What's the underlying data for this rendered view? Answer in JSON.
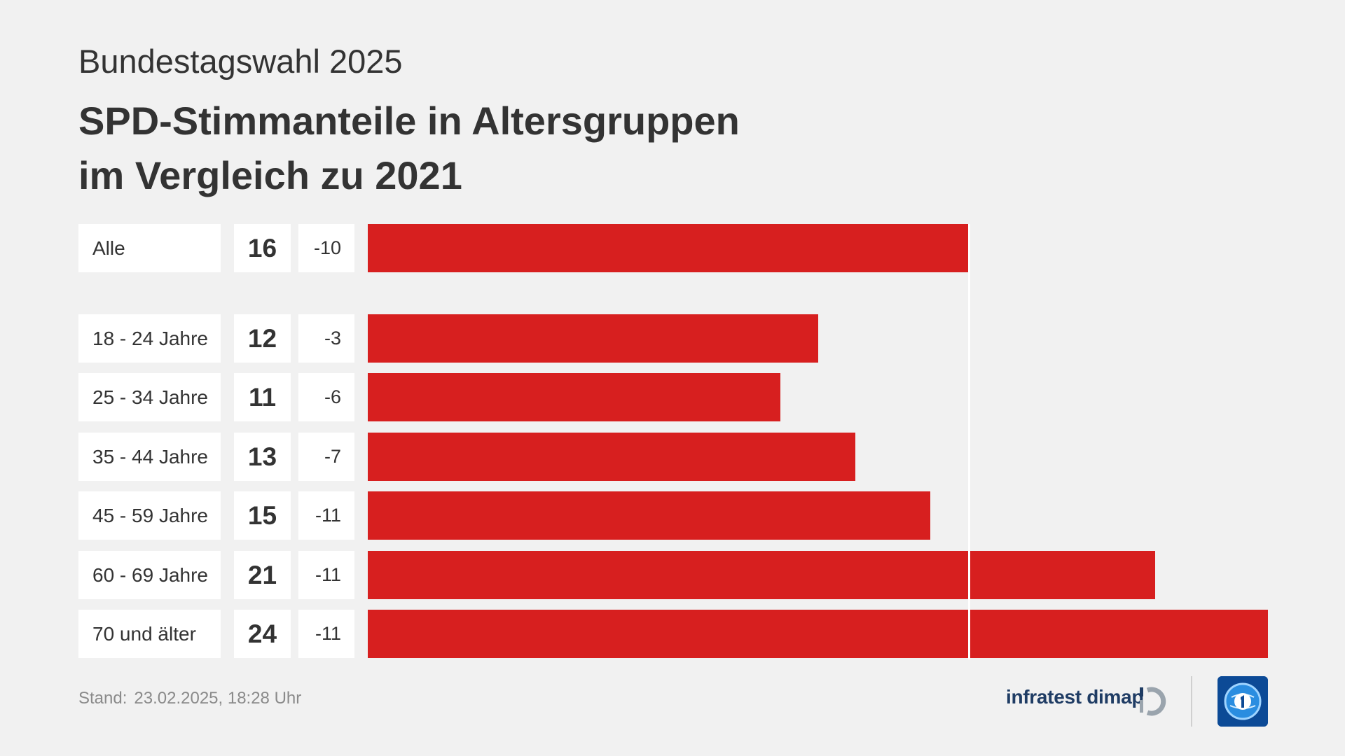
{
  "header": {
    "supertitle": "Bundestagswahl 2025",
    "title_line1": "SPD-Stimmanteile in Altersgruppen",
    "title_line2": "im Vergleich zu 2021"
  },
  "chart_data": {
    "type": "bar",
    "orientation": "horizontal",
    "title": "SPD-Stimmanteile in Altersgruppen im Vergleich zu 2021",
    "categories": [
      "Alle",
      "18 - 24 Jahre",
      "25 - 34 Jahre",
      "35 - 44 Jahre",
      "45 - 59 Jahre",
      "60 - 69 Jahre",
      "70 und älter"
    ],
    "values": [
      16,
      12,
      11,
      13,
      15,
      21,
      24
    ],
    "value_labels": [
      "16",
      "12",
      "11",
      "13",
      "15",
      "21",
      "24"
    ],
    "diffs": [
      "-10",
      "-3",
      "-6",
      "-7",
      "-11",
      "-11",
      "-11"
    ],
    "reference_value": 16,
    "xlim": [
      0,
      24
    ],
    "unit": "%",
    "color": "#d71f1f"
  },
  "footer": {
    "stand_label": "Stand:",
    "stand_value": "23.02.2025, 18:28 Uhr",
    "brand": "infratest dimap"
  },
  "icons": {
    "infratest_logo": "infratest-dimap-logo-icon",
    "ard_logo": "tagesschau-logo-icon"
  }
}
